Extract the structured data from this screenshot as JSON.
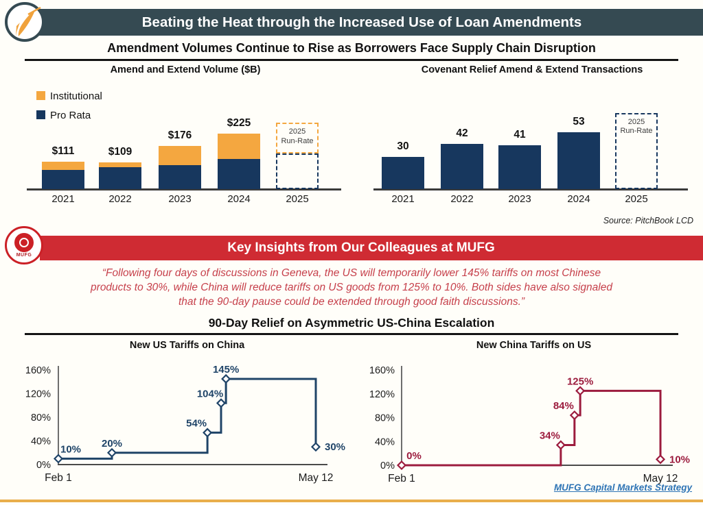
{
  "header": {
    "title": "Beating the Heat through the Increased Use of Loan Amendments",
    "bar_color": "#354A52"
  },
  "section1": {
    "subtitle": "Amendment Volumes Continue to Rise as Borrowers Face Supply Chain Disruption",
    "source_note": "Source: PitchBook LCD"
  },
  "insights": {
    "banner_title": "Key Insights from Our Colleagues at MUFG",
    "banner_color": "#CF2B33",
    "logo_text": "MUFG",
    "quote_color": "#C63F4A",
    "quote_lines": [
      "“Following four days of discussions in Geneva, the US will temporarily lower 145% tariffs on most Chinese",
      "products to 30%, while China will reduce tariffs on US goods from 125% to 10%. Both sides have also signaled",
      "that the 90-day pause could be extended through good faith discussions.”"
    ]
  },
  "section2": {
    "title": "90-Day Relief on Asymmetric US-China Escalation"
  },
  "footer": {
    "link_text": "MUFG Capital Markets Strategy",
    "link_color": "#2E74B5",
    "rule_color": "#E9AE4B"
  },
  "chart_data": [
    {
      "id": "amend-extend-volume",
      "type": "bar",
      "stacked": true,
      "title": "Amend and Extend Volume ($B)",
      "categories": [
        "2021",
        "2022",
        "2023",
        "2024",
        "2025"
      ],
      "series": [
        {
          "name": "Pro Rata",
          "color": "#17375E",
          "values": [
            79,
            88,
            97,
            121,
            null
          ]
        },
        {
          "name": "Institutional",
          "color": "#F4A740",
          "values": [
            32,
            21,
            79,
            104,
            null
          ]
        }
      ],
      "totals_labels": [
        "$111",
        "$109",
        "$176",
        "$225"
      ],
      "legend_order": [
        "Institutional",
        "Pro Rata"
      ],
      "run_rate": {
        "label_lines": [
          "2025",
          "Run-Rate"
        ],
        "pro_rata_est": 144,
        "institutional_est": 125
      },
      "grid": false,
      "legend_position": "top-left"
    },
    {
      "id": "covenant-relief-transactions",
      "type": "bar",
      "title": "Covenant Relief Amend & Extend Transactions",
      "categories": [
        "2021",
        "2022",
        "2023",
        "2024",
        "2025"
      ],
      "values": [
        30,
        42,
        41,
        53,
        null
      ],
      "value_labels": [
        "30",
        "42",
        "41",
        "53"
      ],
      "bar_color": "#17375E",
      "run_rate": {
        "label_lines": [
          "2025",
          "Run-Rate"
        ],
        "total_est": 71
      },
      "grid": false
    },
    {
      "id": "new-us-tariffs-on-china",
      "type": "line",
      "line_style": "step",
      "title": "New US Tariffs on China",
      "color": "#1F4468",
      "ylim": [
        0,
        160
      ],
      "yticks": [
        "0%",
        "40%",
        "80%",
        "120%",
        "160%"
      ],
      "x_axis_labels": [
        "Feb 1",
        "May 12"
      ],
      "points": [
        {
          "x": 0.0,
          "pct": 10,
          "label": "10%",
          "label_pos": "above-right"
        },
        {
          "x": 0.208,
          "pct": 20,
          "label": "20%",
          "label_pos": "above"
        },
        {
          "x": 0.579,
          "pct": 54,
          "label": "54%",
          "label_pos": "above-left"
        },
        {
          "x": 0.632,
          "pct": 104,
          "label": "104%",
          "label_pos": "above-left"
        },
        {
          "x": 0.651,
          "pct": 145,
          "label": "145%",
          "label_pos": "above"
        },
        {
          "x": 1.0,
          "pct": 30,
          "label": "30%",
          "label_pos": "right"
        }
      ]
    },
    {
      "id": "new-china-tariffs-on-us",
      "type": "line",
      "line_style": "step",
      "title": "New China Tariffs on US",
      "color": "#9C1C3E",
      "ylim": [
        0,
        160
      ],
      "yticks": [
        "0%",
        "40%",
        "80%",
        "120%",
        "160%"
      ],
      "x_axis_labels": [
        "Feb 1",
        "May 12"
      ],
      "points": [
        {
          "x": 0.0,
          "pct": 0,
          "label": "0%",
          "label_pos": "above-right"
        },
        {
          "x": 0.615,
          "pct": 34,
          "label": "34%",
          "label_pos": "above-left"
        },
        {
          "x": 0.668,
          "pct": 84,
          "label": "84%",
          "label_pos": "above-left"
        },
        {
          "x": 0.69,
          "pct": 125,
          "label": "125%",
          "label_pos": "above"
        },
        {
          "x": 1.0,
          "pct": 10,
          "label": "10%",
          "label_pos": "right"
        }
      ]
    }
  ]
}
